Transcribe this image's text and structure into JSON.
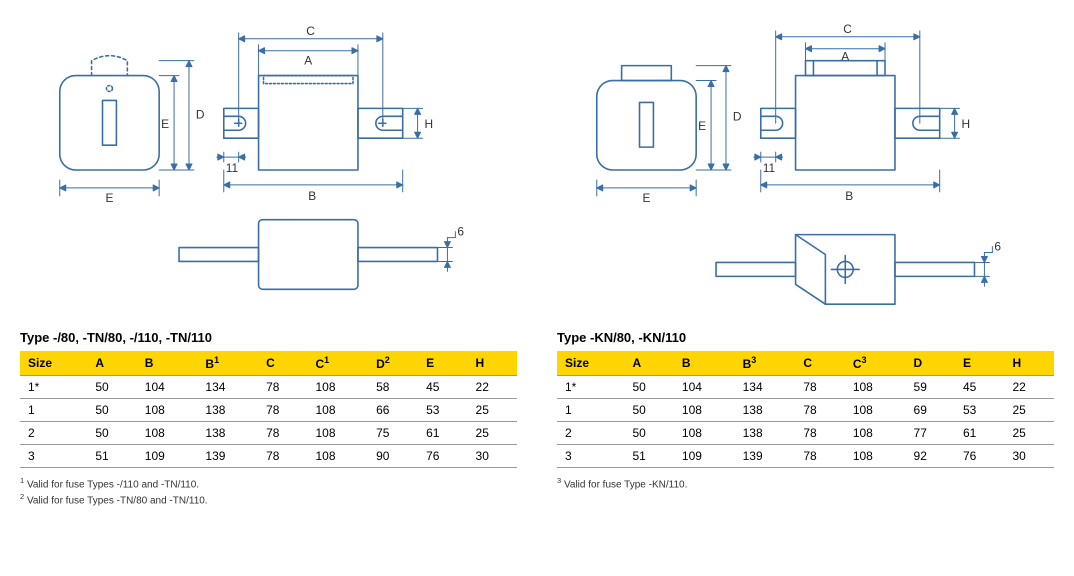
{
  "left": {
    "title": "Type -/80, -TN/80, -/110, -TN/110",
    "columns": [
      "Size",
      "A",
      "B",
      "B¹",
      "C",
      "C¹",
      "D²",
      "E",
      "H"
    ],
    "rows": [
      [
        "1*",
        "50",
        "104",
        "134",
        "78",
        "108",
        "58",
        "45",
        "22"
      ],
      [
        "1",
        "50",
        "108",
        "138",
        "78",
        "108",
        "66",
        "53",
        "25"
      ],
      [
        "2",
        "50",
        "108",
        "138",
        "78",
        "108",
        "75",
        "61",
        "25"
      ],
      [
        "3",
        "51",
        "109",
        "139",
        "78",
        "108",
        "90",
        "76",
        "30"
      ]
    ],
    "footnotes": [
      "¹ Valid for fuse Types -/110 and -TN/110.",
      "² Valid for fuse Types -TN/80 and -TN/110."
    ]
  },
  "right": {
    "title": "Type -KN/80, -KN/110",
    "columns": [
      "Size",
      "A",
      "B",
      "B³",
      "C",
      "C³",
      "D",
      "E",
      "H"
    ],
    "rows": [
      [
        "1*",
        "50",
        "104",
        "134",
        "78",
        "108",
        "59",
        "45",
        "22"
      ],
      [
        "1",
        "50",
        "108",
        "138",
        "78",
        "108",
        "69",
        "53",
        "25"
      ],
      [
        "2",
        "50",
        "108",
        "138",
        "78",
        "108",
        "77",
        "61",
        "25"
      ],
      [
        "3",
        "51",
        "109",
        "139",
        "78",
        "108",
        "92",
        "76",
        "30"
      ]
    ],
    "footnotes": [
      "³ Valid for fuse Type -KN/110."
    ]
  },
  "dim_labels": {
    "A": "A",
    "B": "B",
    "C": "C",
    "D": "D",
    "E": "E",
    "H": "H",
    "eleven": "11",
    "six": "6"
  },
  "style": {
    "stroke": "#3a6ea5",
    "stroke_width": 1.6,
    "header_bg": "#ffd500",
    "font_label": 12
  }
}
